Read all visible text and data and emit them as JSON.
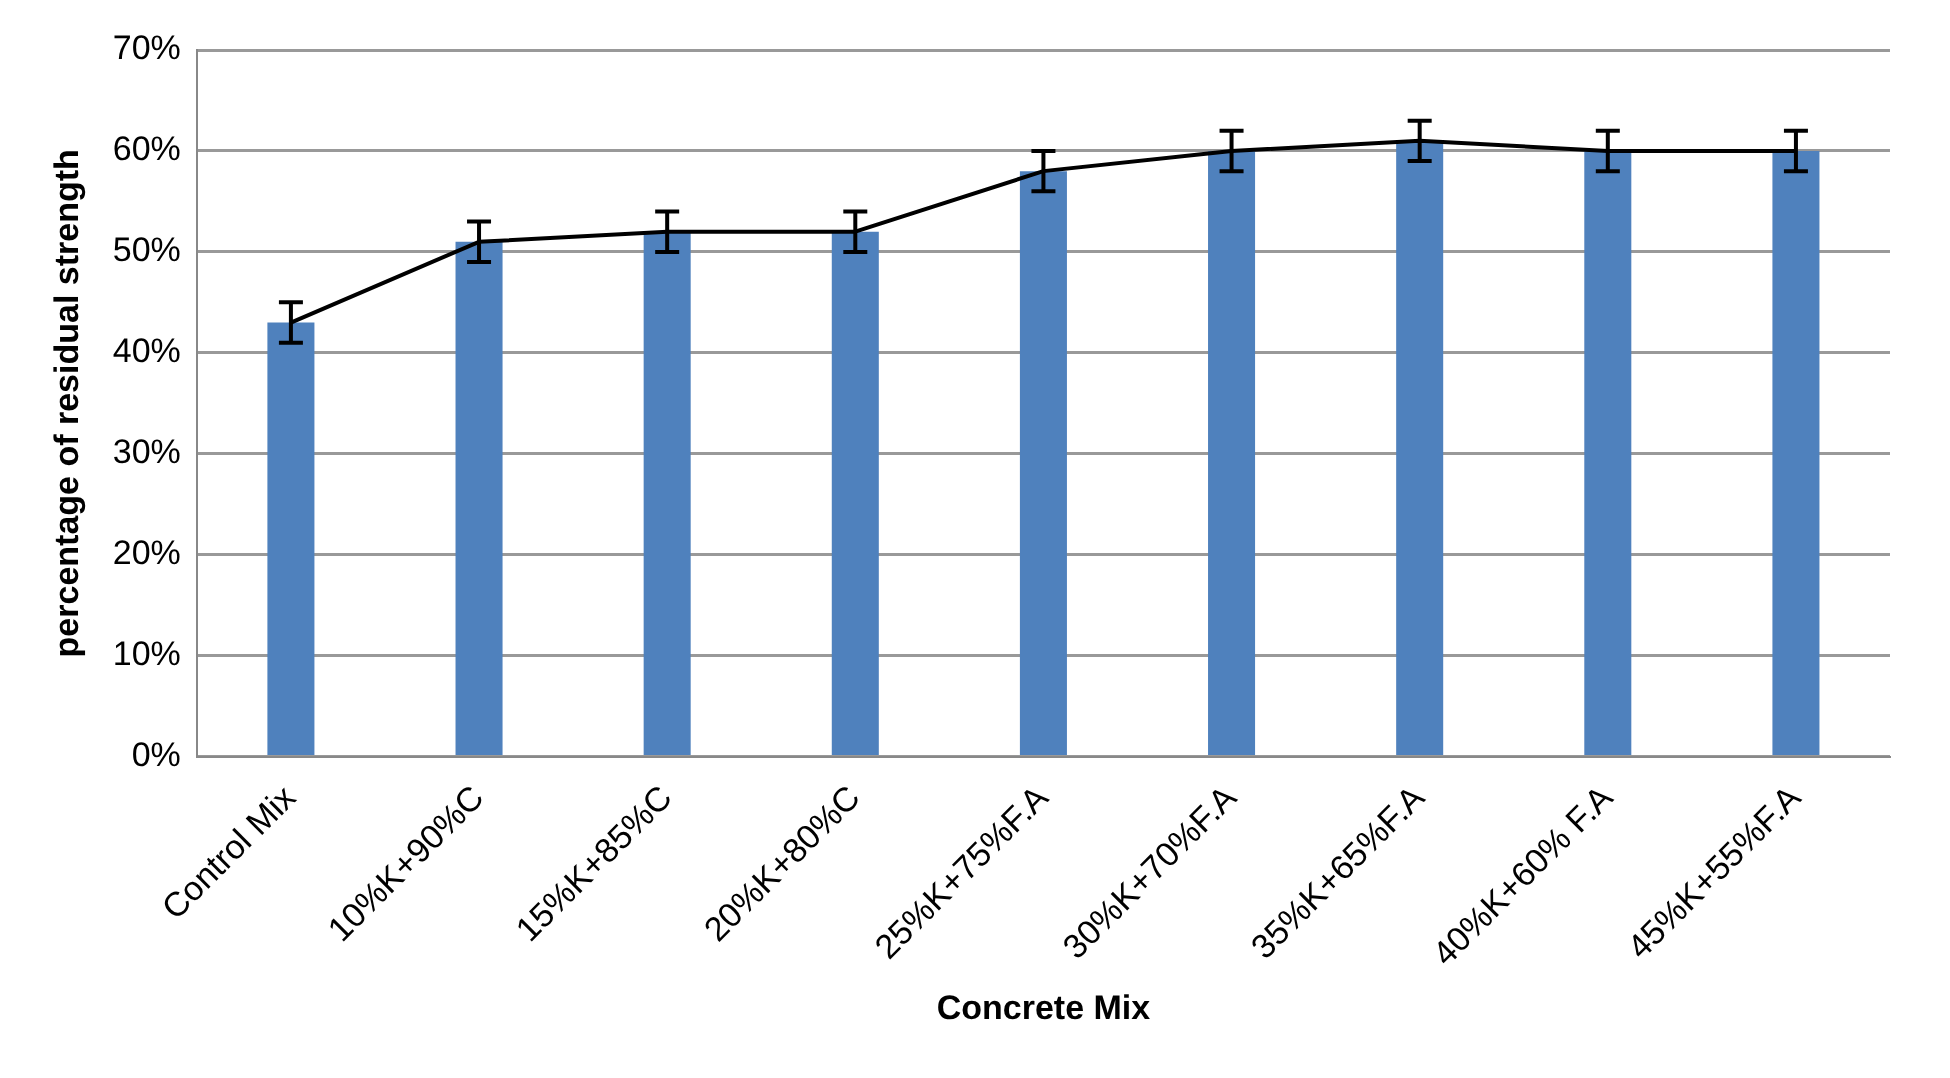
{
  "chart_data": {
    "type": "bar",
    "xlabel": "Concrete Mix",
    "ylabel": "percentage of residual strength",
    "categories": [
      "Control Mix",
      "10%K+90%C",
      "15%K+85%C",
      "20%K+80%C",
      "25%K+75%F.A",
      "30%K+70%F.A",
      "35%K+65%F.A",
      "40%K+60% F.A",
      "45%K+55%F.A"
    ],
    "series": [
      {
        "color": "#4f81bd",
        "values": [
          43,
          51,
          52,
          52,
          58,
          60,
          61,
          60,
          60
        ],
        "errors": [
          2,
          2,
          2,
          2,
          2,
          2,
          2,
          2,
          2
        ]
      },
      {
        "type": "line",
        "color": "#000000",
        "values": [
          43,
          51,
          52,
          52,
          58,
          60,
          61,
          60,
          60
        ],
        "marker": "none"
      }
    ],
    "ylim": [
      0,
      70
    ],
    "yticks": [
      {
        "value": 0,
        "label": "0%"
      },
      {
        "value": 10,
        "label": "10%"
      },
      {
        "value": 20,
        "label": "20%"
      },
      {
        "value": 30,
        "label": "30%"
      },
      {
        "value": 40,
        "label": "40%"
      },
      {
        "value": 50,
        "label": "50%"
      },
      {
        "value": 60,
        "label": "60%"
      },
      {
        "value": 70,
        "label": "70%"
      }
    ],
    "grid": "y",
    "legend": false
  }
}
